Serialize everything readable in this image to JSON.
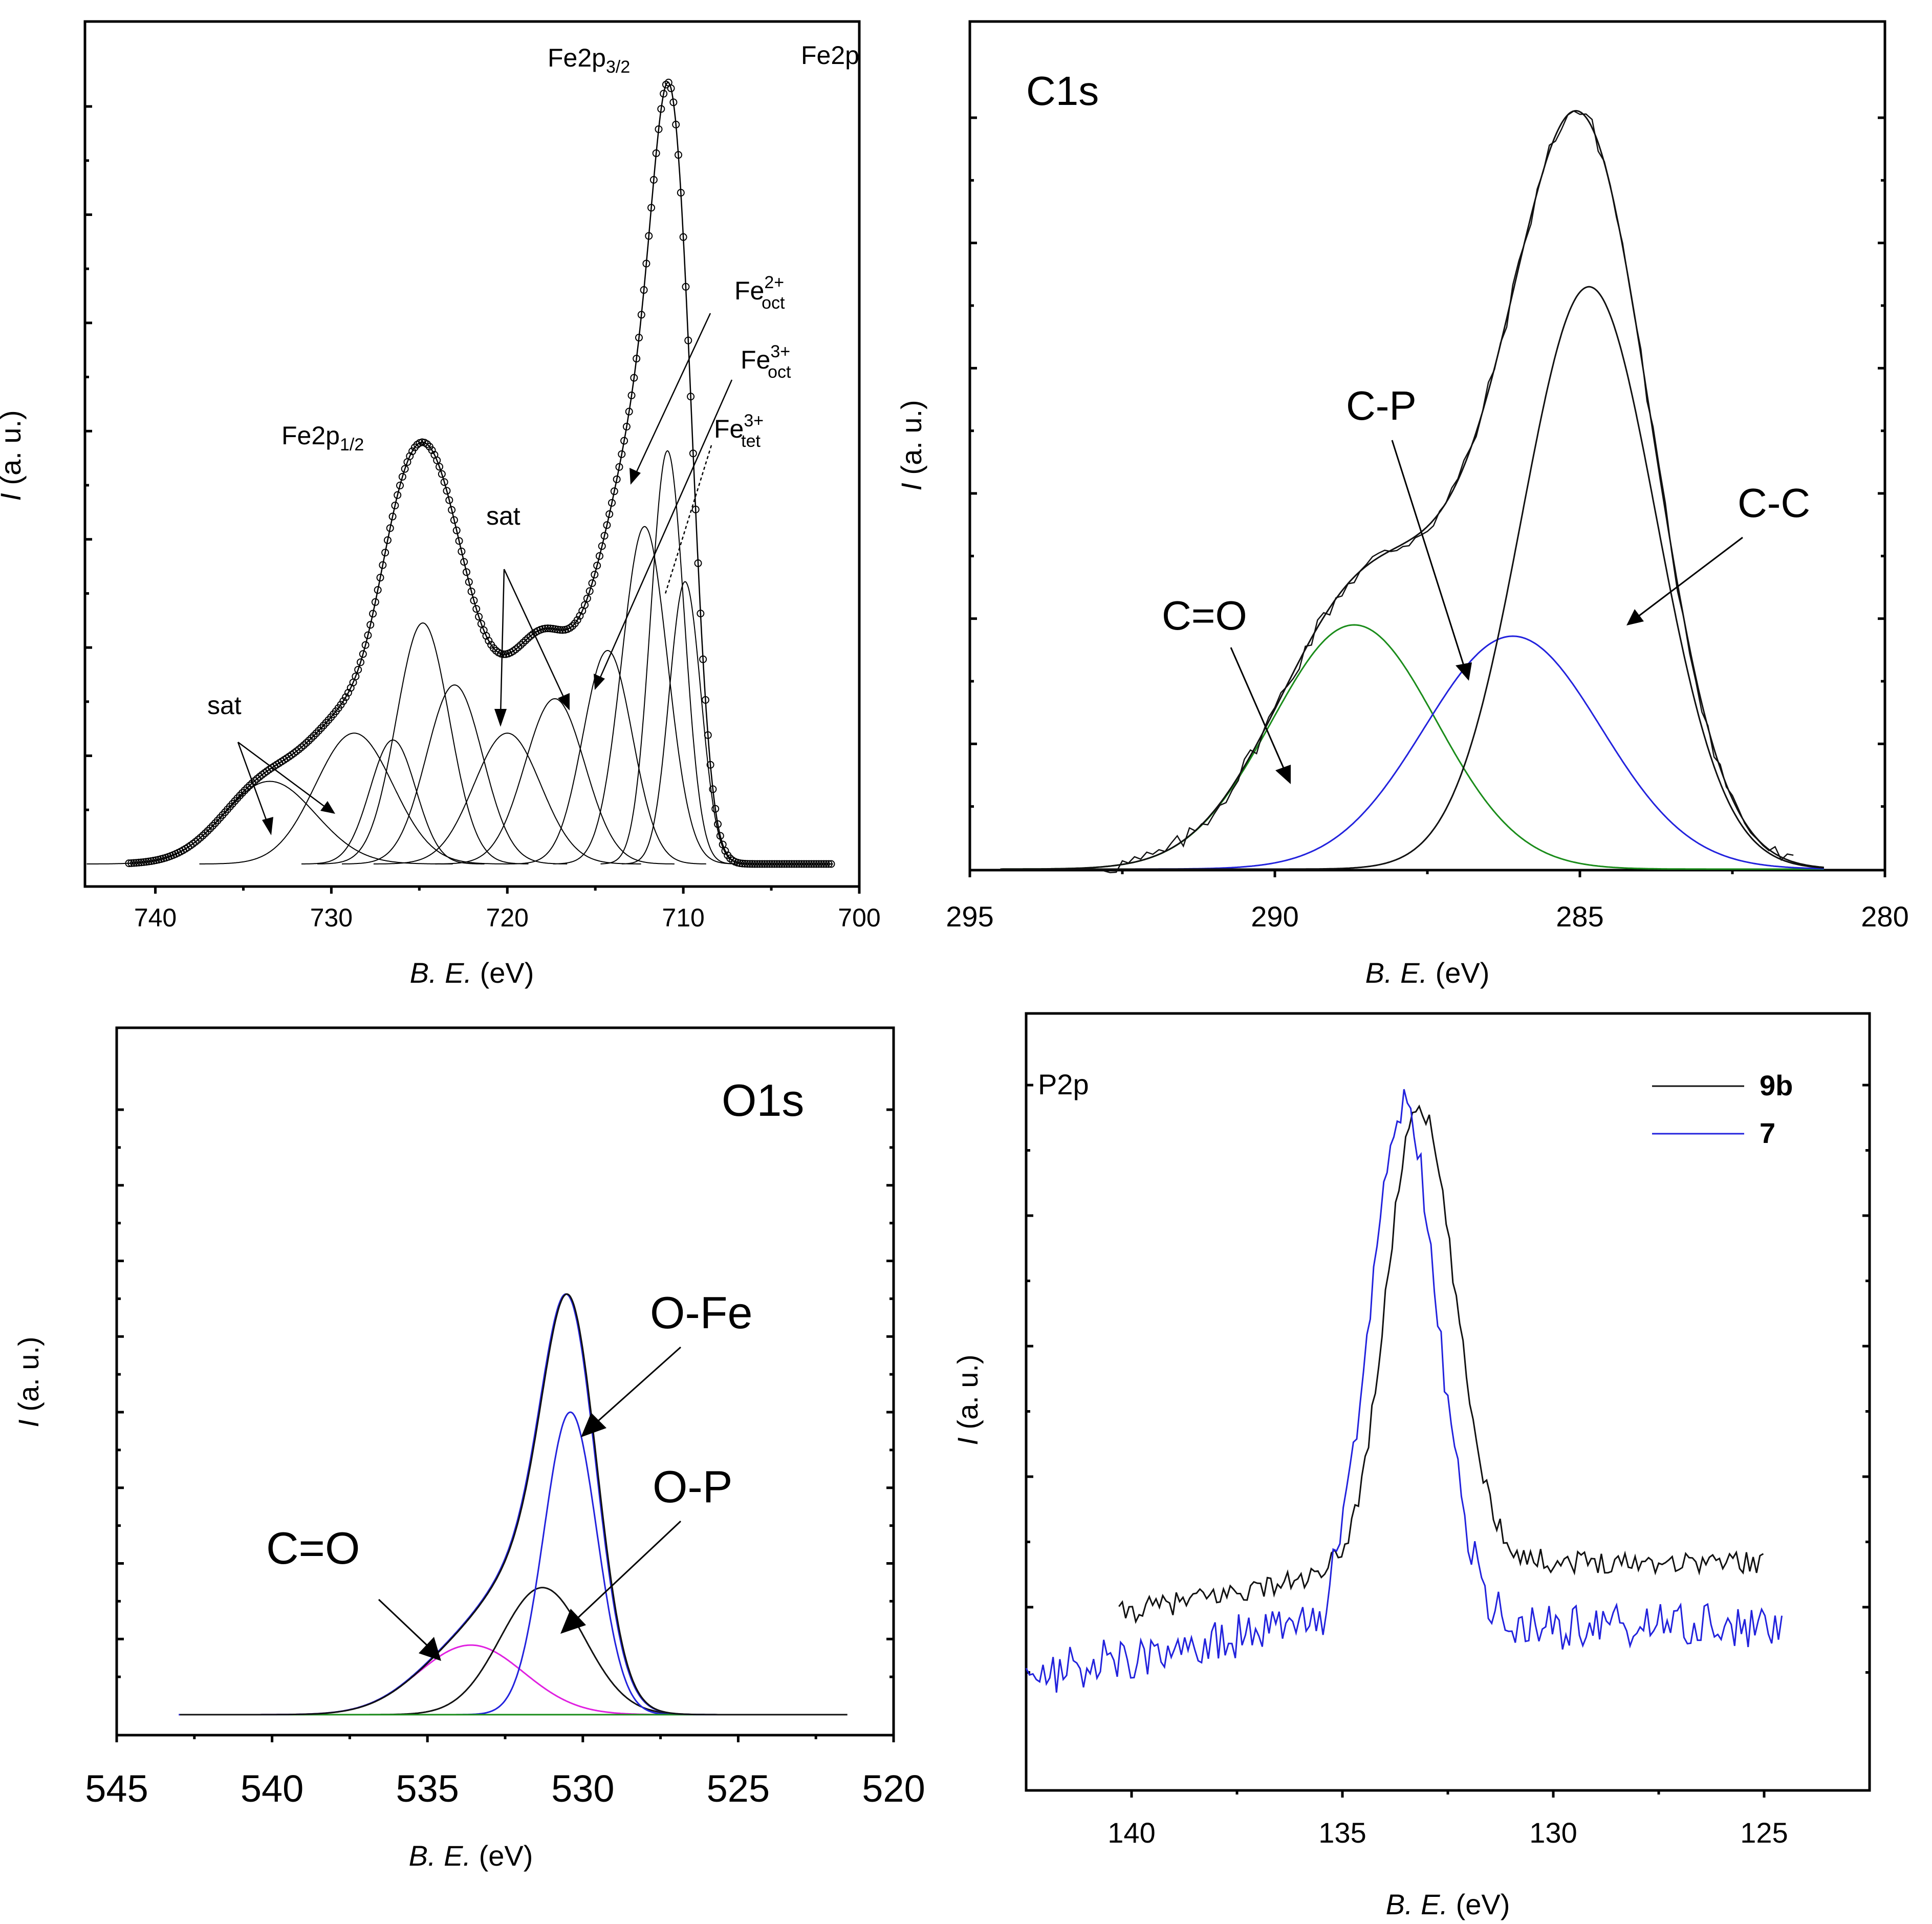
{
  "chart_data": [
    {
      "id": "fe2p",
      "type": "line",
      "title": "Fe2p",
      "xlabel_italic": "B. E.",
      "xlabel_unit": " (eV)",
      "ylabel_italic": "I",
      "ylabel_unit": " (a. u.)",
      "x_reversed": true,
      "xlim": [
        744,
        700
      ],
      "ylim": [
        0,
        1.1
      ],
      "xticks": [
        740,
        730,
        720,
        710,
        700
      ],
      "labels": {
        "fe2p32_base": "Fe2p",
        "fe2p32_sub": "3/2",
        "fe2p12_base": "Fe2p",
        "fe2p12_sub": "1/2",
        "sat_a": "sat",
        "sat_b": "sat",
        "fe2oct_base": "Fe",
        "fe2oct_sup": "2+",
        "fe2oct_sub": "oct",
        "fe3oct_base": "Fe",
        "fe3oct_sup": "3+",
        "fe3oct_sub": "oct",
        "fe3tet_base": "Fe",
        "fe3tet_sup": "3+",
        "fe3tet_sub": "tet"
      },
      "peaks": [
        {
          "center": 733.5,
          "amplitude": 0.12,
          "width": 2.6
        },
        {
          "center": 728.7,
          "amplitude": 0.19,
          "width": 2.2
        },
        {
          "center": 726.5,
          "amplitude": 0.18,
          "width": 1.3
        },
        {
          "center": 724.8,
          "amplitude": 0.35,
          "width": 1.5
        },
        {
          "center": 723.0,
          "amplitude": 0.26,
          "width": 1.6
        },
        {
          "center": 720.0,
          "amplitude": 0.19,
          "width": 1.9
        },
        {
          "center": 717.3,
          "amplitude": 0.24,
          "width": 1.7
        },
        {
          "center": 714.3,
          "amplitude": 0.31,
          "width": 1.4
        },
        {
          "center": 712.2,
          "amplitude": 0.49,
          "width": 1.3
        },
        {
          "center": 710.9,
          "amplitude": 0.6,
          "width": 0.95
        },
        {
          "center": 709.9,
          "amplitude": 0.41,
          "width": 0.9
        }
      ]
    },
    {
      "id": "c1s",
      "type": "line",
      "title": "C1s",
      "xlabel_italic": "B. E.",
      "xlabel_unit": " (eV)",
      "ylabel_italic": "I",
      "ylabel_unit": " (a. u.)",
      "x_reversed": true,
      "xlim": [
        295,
        280
      ],
      "ylim": [
        0,
        1.0
      ],
      "xticks": [
        295,
        290,
        285,
        280
      ],
      "labels": {
        "c_o": "C=O",
        "c_p": "C-P",
        "c_c": "C-C"
      },
      "series": [
        {
          "name": "C=O",
          "color": "#1a8c1a",
          "center": 288.7,
          "amplitude": 0.325,
          "width": 1.35
        },
        {
          "name": "C-P",
          "color": "#2222dd",
          "center": 286.1,
          "amplitude": 0.31,
          "width": 1.45
        },
        {
          "name": "C-C",
          "color": "#111111",
          "center": 284.85,
          "amplitude": 0.775,
          "width": 1.1
        }
      ]
    },
    {
      "id": "o1s",
      "type": "line",
      "title": "O1s",
      "xlabel_italic": "B. E.",
      "xlabel_unit": " (eV)",
      "ylabel_italic": "I",
      "ylabel_unit": " (a. u.)",
      "x_reversed": true,
      "xlim": [
        545,
        520
      ],
      "ylim": [
        0,
        1.0
      ],
      "xticks": [
        545,
        540,
        535,
        530,
        525,
        520
      ],
      "labels": {
        "c_o": "C=O",
        "o_fe": "O-Fe",
        "o_p": "O-P"
      },
      "series": [
        {
          "name": "C=O",
          "color": "#e020e0",
          "center": 533.6,
          "amplitude": 0.115,
          "width": 1.7
        },
        {
          "name": "O-P",
          "color": "#111111",
          "center": 531.3,
          "amplitude": 0.21,
          "width": 1.35
        },
        {
          "name": "O-Fe",
          "color": "#2222dd",
          "center": 530.4,
          "amplitude": 0.5,
          "width": 0.85
        },
        {
          "name": "baseline",
          "color": "#1a8c1a"
        }
      ]
    },
    {
      "id": "p2p",
      "type": "line",
      "title": "P2p",
      "xlabel_italic": "B. E.",
      "xlabel_unit": " (eV)",
      "ylabel_italic": "I",
      "ylabel_unit": " (a. u.)",
      "x_reversed": true,
      "xlim": [
        142.5,
        122.5
      ],
      "ylim": [
        0,
        1.0
      ],
      "xticks": [
        140,
        135,
        130,
        125
      ],
      "legend": {
        "position": "top-right",
        "entries": [
          {
            "label": "9b",
            "color": "#111111"
          },
          {
            "label": "7",
            "color": "#2222dd"
          }
        ]
      },
      "series": [
        {
          "name": "9b",
          "color": "#111111",
          "x_range": [
            140.3,
            125.0
          ],
          "peak_center": 133.2,
          "peak_value": 0.97,
          "plateau_left": 0.25,
          "plateau_right": 0.27
        },
        {
          "name": "7",
          "color": "#2222dd",
          "x_range": [
            142.5,
            124.5
          ],
          "peak_center": 133.6,
          "peak_value": 0.97,
          "plateau_left": 0.18,
          "plateau_right": 0.17
        }
      ]
    }
  ]
}
